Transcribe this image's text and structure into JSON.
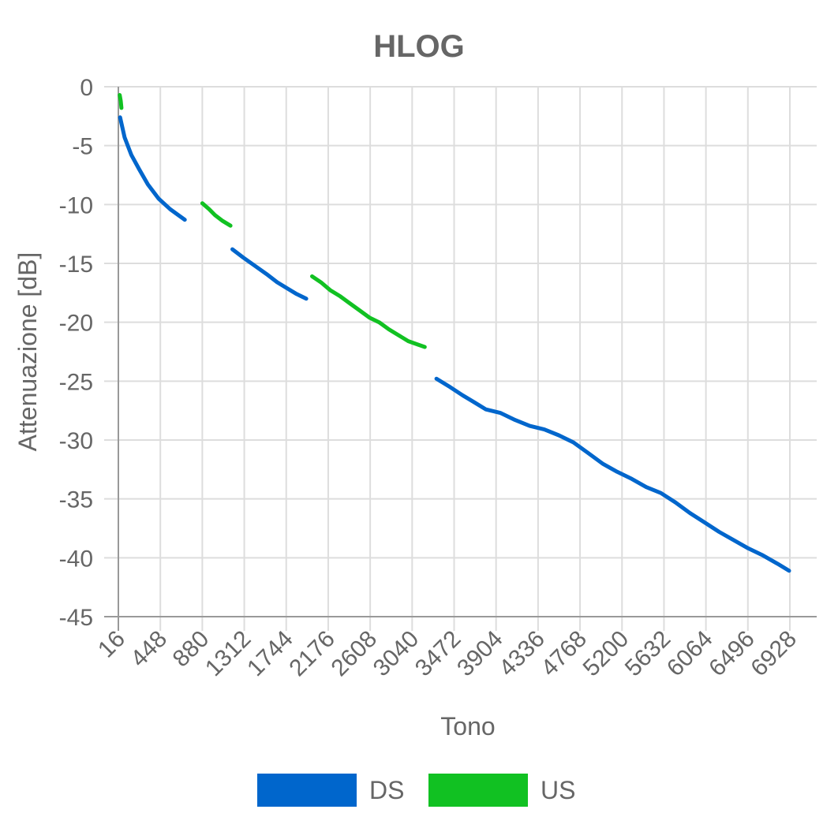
{
  "chart_data": {
    "type": "line",
    "title": "HLOG",
    "xlabel": "Tono",
    "ylabel": "Attenuazione [dB]",
    "xlim": [
      16,
      6928
    ],
    "ylim": [
      -45,
      0
    ],
    "x_ticks": [
      "16",
      "448",
      "880",
      "1312",
      "1744",
      "2176",
      "2608",
      "3040",
      "3472",
      "3904",
      "4336",
      "4768",
      "5200",
      "5632",
      "6064",
      "6496",
      "6928"
    ],
    "y_ticks": [
      "0",
      "-5",
      "-10",
      "-15",
      "-20",
      "-25",
      "-30",
      "-35",
      "-40",
      "-45"
    ],
    "grid": true,
    "legend_position": "bottom",
    "series": [
      {
        "name": "DS",
        "color": "#0066CC",
        "segments": [
          [
            [
              34,
              -2.6
            ],
            [
              80,
              -4.3
            ],
            [
              150,
              -5.8
            ],
            [
              230,
              -7.0
            ],
            [
              320,
              -8.3
            ],
            [
              430,
              -9.5
            ],
            [
              550,
              -10.4
            ],
            [
              650,
              -11.0
            ],
            [
              700,
              -11.3
            ]
          ],
          [
            [
              1190,
              -13.8
            ],
            [
              1300,
              -14.5
            ],
            [
              1420,
              -15.2
            ],
            [
              1540,
              -15.9
            ],
            [
              1650,
              -16.6
            ],
            [
              1750,
              -17.1
            ],
            [
              1850,
              -17.6
            ],
            [
              1950,
              -18.0
            ]
          ],
          [
            [
              3290,
              -24.8
            ],
            [
              3430,
              -25.5
            ],
            [
              3560,
              -26.2
            ],
            [
              3680,
              -26.8
            ],
            [
              3800,
              -27.4
            ],
            [
              3950,
              -27.7
            ],
            [
              4100,
              -28.3
            ],
            [
              4250,
              -28.8
            ],
            [
              4400,
              -29.1
            ],
            [
              4550,
              -29.6
            ],
            [
              4700,
              -30.2
            ],
            [
              4850,
              -31.1
            ],
            [
              5000,
              -32.0
            ],
            [
              5150,
              -32.7
            ],
            [
              5300,
              -33.3
            ],
            [
              5450,
              -34.0
            ],
            [
              5600,
              -34.5
            ],
            [
              5750,
              -35.3
            ],
            [
              5900,
              -36.2
            ],
            [
              6050,
              -37.0
            ],
            [
              6200,
              -37.8
            ],
            [
              6350,
              -38.5
            ],
            [
              6500,
              -39.2
            ],
            [
              6650,
              -39.8
            ],
            [
              6800,
              -40.5
            ],
            [
              6920,
              -41.1
            ]
          ]
        ]
      },
      {
        "name": "US",
        "color": "#11C122",
        "segments": [
          [
            [
              30,
              -0.7
            ],
            [
              40,
              -1.2
            ],
            [
              48,
              -1.8
            ]
          ],
          [
            [
              880,
              -9.9
            ],
            [
              950,
              -10.4
            ],
            [
              1010,
              -10.9
            ],
            [
              1090,
              -11.4
            ],
            [
              1170,
              -11.8
            ]
          ],
          [
            [
              2010,
              -16.1
            ],
            [
              2100,
              -16.6
            ],
            [
              2200,
              -17.3
            ],
            [
              2300,
              -17.8
            ],
            [
              2400,
              -18.4
            ],
            [
              2500,
              -19.0
            ],
            [
              2600,
              -19.6
            ],
            [
              2700,
              -20.0
            ],
            [
              2800,
              -20.6
            ],
            [
              2900,
              -21.1
            ],
            [
              3000,
              -21.6
            ],
            [
              3100,
              -21.9
            ],
            [
              3170,
              -22.1
            ]
          ]
        ]
      }
    ]
  }
}
